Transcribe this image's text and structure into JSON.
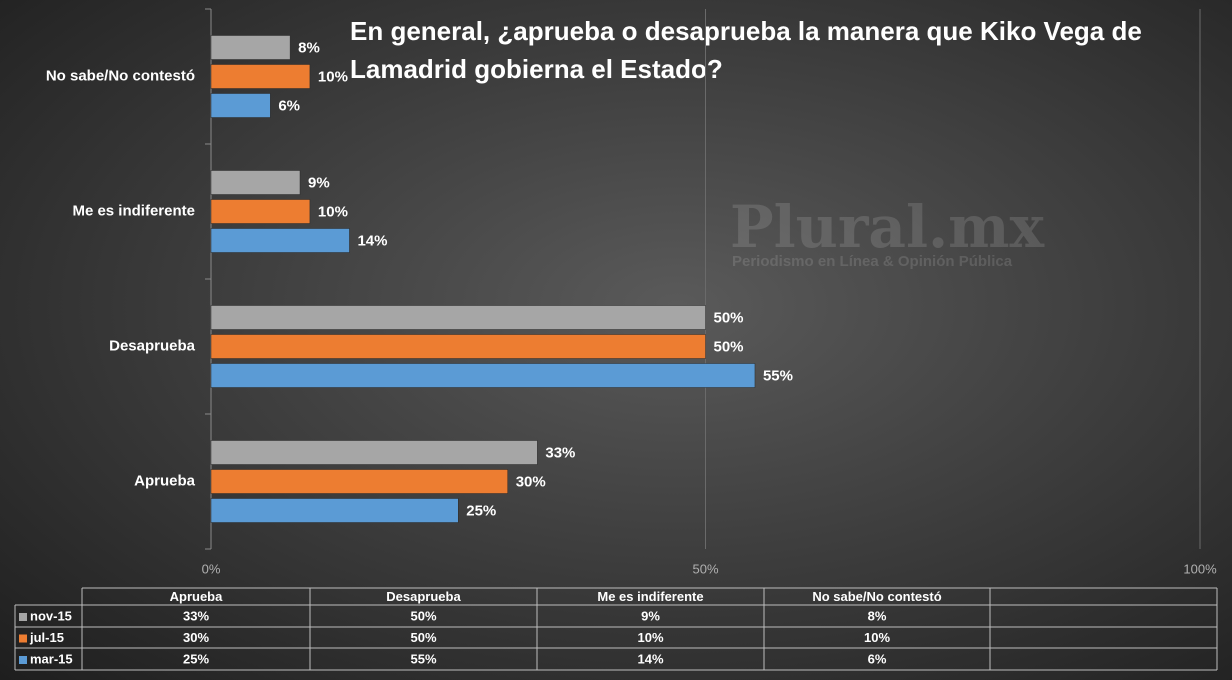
{
  "chart_data": {
    "type": "bar",
    "orientation": "horizontal",
    "title": "En general, ¿aprueba o desaprueba la manera que Kiko Vega de Lamadrid gobierna el Estado?",
    "categories": [
      "Aprueba",
      "Desaprueba",
      "Me es indiferente",
      "No sabe/No contestó"
    ],
    "series": [
      {
        "name": "nov-15",
        "color": "#a6a6a6",
        "values": [
          33,
          50,
          9,
          8
        ],
        "value_labels": [
          "33%",
          "50%",
          "9%",
          "8%"
        ]
      },
      {
        "name": "jul-15",
        "color": "#ed7d31",
        "values": [
          30,
          50,
          10,
          10
        ],
        "value_labels": [
          "30%",
          "50%",
          "10%",
          "10%"
        ]
      },
      {
        "name": "mar-15",
        "color": "#5b9bd5",
        "values": [
          25,
          55,
          14,
          6
        ],
        "value_labels": [
          "25%",
          "55%",
          "14%",
          "6%"
        ]
      }
    ],
    "xlim": [
      0,
      100
    ],
    "xticks": [
      {
        "value": 0,
        "label": "0%"
      },
      {
        "value": 50,
        "label": "50%"
      },
      {
        "value": 100,
        "label": "100%"
      }
    ],
    "grid": true,
    "data_table": true,
    "watermark": {
      "title": "Plural.mx",
      "subtitle": "Periodismo en Línea & Opinión Pública"
    }
  }
}
